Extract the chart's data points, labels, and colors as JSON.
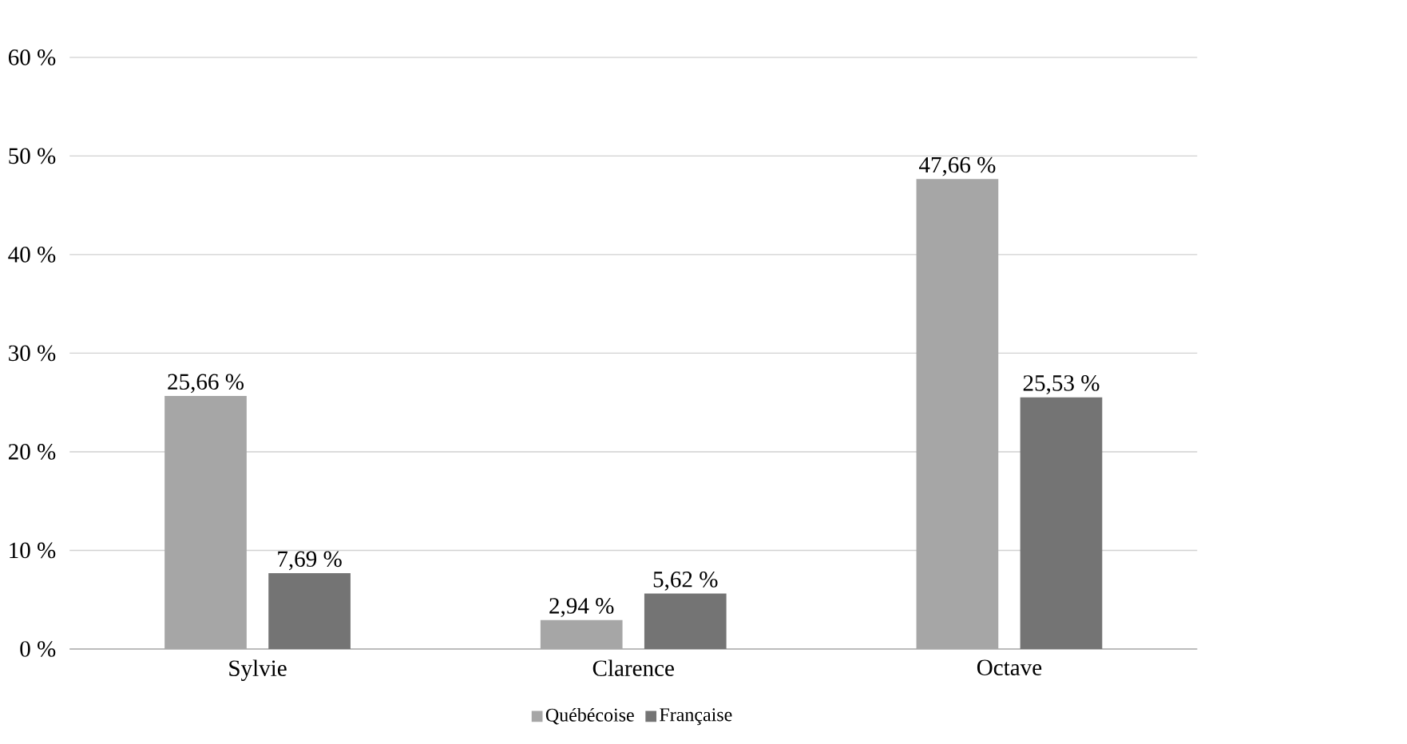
{
  "chart_data": {
    "type": "bar",
    "categories": [
      "Sylvie",
      "Clarence",
      "Octave"
    ],
    "series": [
      {
        "name": "Québécoise",
        "color": "#a6a6a6",
        "values": [
          25.66,
          2.94,
          47.66
        ],
        "value_labels": [
          "25,66 %",
          "2,94 %",
          "47,66 %"
        ]
      },
      {
        "name": "Française",
        "color": "#747474",
        "values": [
          7.69,
          5.62,
          25.53
        ],
        "value_labels": [
          "7,69 %",
          "5,62 %",
          "25,53 %"
        ]
      }
    ],
    "ylim": [
      0,
      60
    ],
    "yticks": [
      {
        "value": 0,
        "label": "0 %"
      },
      {
        "value": 10,
        "label": "10 %"
      },
      {
        "value": 20,
        "label": "20 %"
      },
      {
        "value": 30,
        "label": "30 %"
      },
      {
        "value": 40,
        "label": "40 %"
      },
      {
        "value": 50,
        "label": "50 %"
      },
      {
        "value": 60,
        "label": "60 %"
      }
    ],
    "grid": "y",
    "legend": "bottom"
  }
}
